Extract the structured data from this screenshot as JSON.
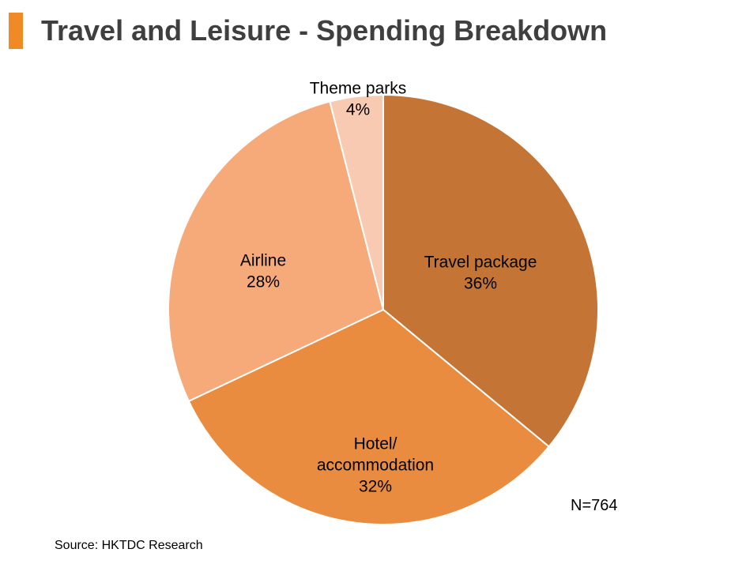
{
  "chart_data": {
    "type": "pie",
    "title": "Travel and Leisure - Spending Breakdown",
    "slices": [
      {
        "label_lines": [
          "Travel package"
        ],
        "value": 36,
        "value_label": "36%",
        "color": "#c47535"
      },
      {
        "label_lines": [
          "Hotel/",
          "accommodation"
        ],
        "value": 32,
        "value_label": "32%",
        "color": "#e98c3f"
      },
      {
        "label_lines": [
          "Airline"
        ],
        "value": 28,
        "value_label": "28%",
        "color": "#f7aa79"
      },
      {
        "label_lines": [
          "Theme parks"
        ],
        "value": 4,
        "value_label": "4%",
        "color": "#f8cab2"
      }
    ],
    "start_angle_deg": 0,
    "direction": "clockwise",
    "legend": "none"
  },
  "notes": {
    "sample_size": "N=764",
    "source": "Source: HKTDC Research"
  }
}
